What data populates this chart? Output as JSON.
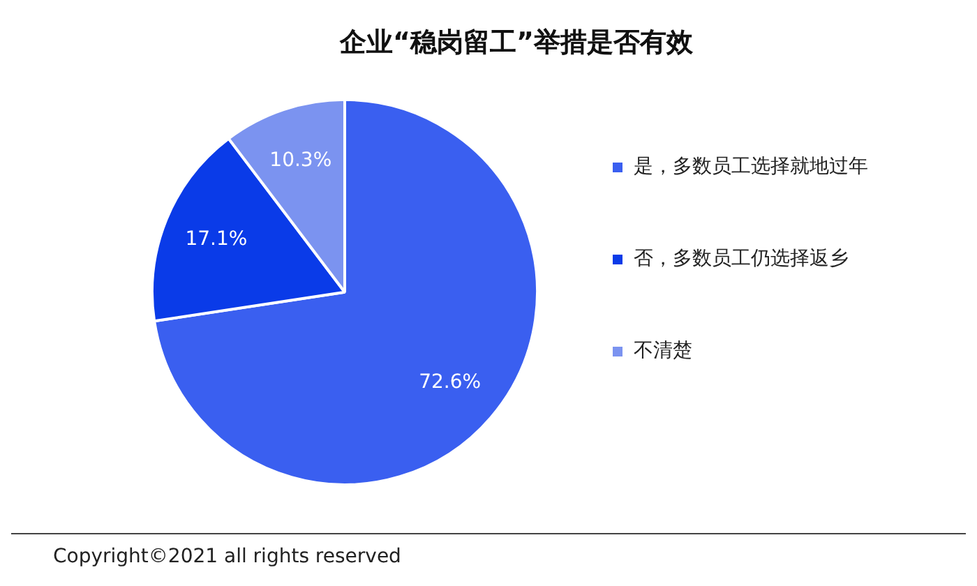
{
  "chart_data": {
    "type": "pie",
    "title": "企业“稳岗留工”举措是否有效",
    "categories": [
      "是，多数员工选择就地过年",
      "否，多数员工仍选择返乡",
      "不清楚"
    ],
    "values": [
      72.6,
      17.1,
      10.3
    ],
    "value_labels": [
      "72.6%",
      "17.1%",
      "10.3%"
    ],
    "colors": [
      "#3a5ff0",
      "#0a3be8",
      "#7b93f0"
    ],
    "legend": "right",
    "annotations": [
      "Copyright©2021 all rights reserved"
    ]
  }
}
